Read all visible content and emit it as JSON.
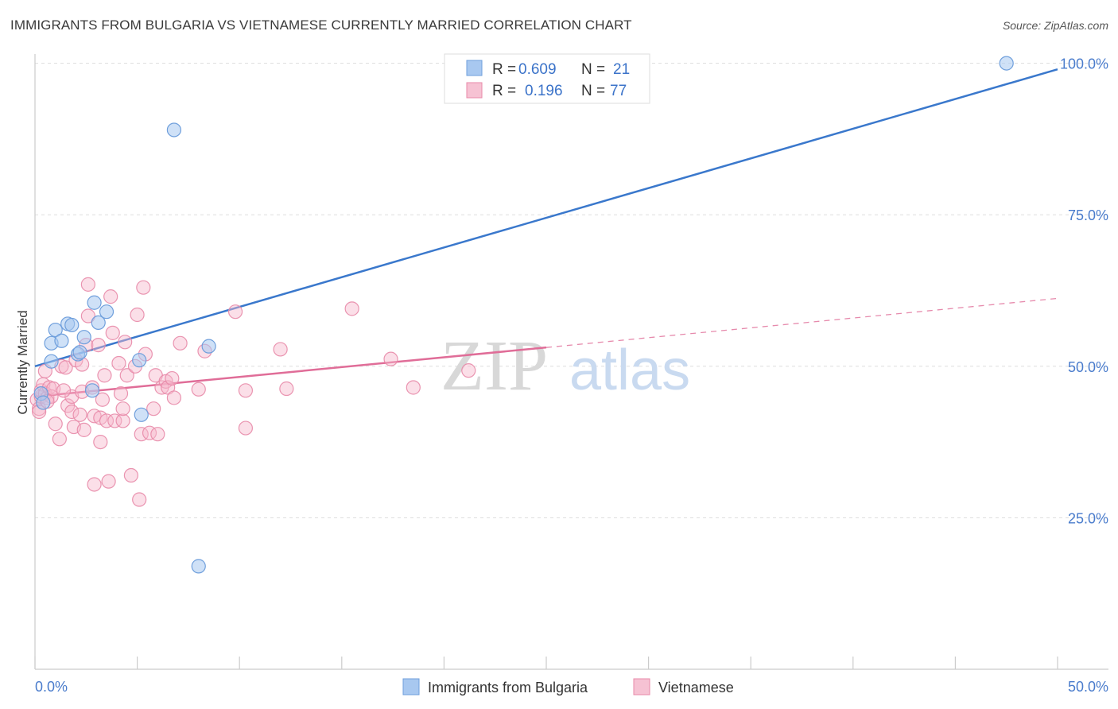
{
  "title": "IMMIGRANTS FROM BULGARIA VS VIETNAMESE CURRENTLY MARRIED CORRELATION CHART",
  "source": "Source: ZipAtlas.com",
  "watermark": {
    "zip": "ZIP",
    "atlas": "atlas"
  },
  "colors": {
    "blue_fill": "#a8c8f0",
    "blue_stroke": "#6f9fdc",
    "blue_line": "#3a78cc",
    "pink_fill": "#f6b8cc",
    "pink_stroke": "#e88aa8",
    "pink_line": "#e06d98",
    "grid": "#dddddd",
    "axis_text": "#4a7ccc"
  },
  "legend": {
    "rows": [
      {
        "r_label": "R =",
        "r_value": "0.609",
        "n_label": "N =",
        "n_value": "21"
      },
      {
        "r_label": "R =",
        "r_value": "0.196",
        "n_label": "N =",
        "n_value": "77"
      }
    ]
  },
  "bottom_legend": [
    "Immigrants from Bulgaria",
    "Vietnamese"
  ],
  "chart_data": {
    "type": "scatter",
    "title": "IMMIGRANTS FROM BULGARIA VS VIETNAMESE CURRENTLY MARRIED CORRELATION CHART",
    "xlabel": "",
    "ylabel": "Currently Married",
    "xlim": [
      0,
      50
    ],
    "ylim": [
      0,
      105
    ],
    "x_tick_labels": [
      "0.0%",
      "50.0%"
    ],
    "y_ticks": [
      25,
      50,
      75,
      100
    ],
    "y_tick_labels": [
      "25.0%",
      "50.0%",
      "75.0%",
      "100.0%"
    ],
    "series": [
      {
        "name": "Immigrants from Bulgaria",
        "R": 0.609,
        "N": 21,
        "trend": {
          "x": [
            0,
            50
          ],
          "y": [
            50.0,
            99.0
          ],
          "dashed_from": null
        },
        "points": [
          [
            0.3,
            45.5
          ],
          [
            0.4,
            44.0
          ],
          [
            0.8,
            50.8
          ],
          [
            0.8,
            53.8
          ],
          [
            1.0,
            56.0
          ],
          [
            1.3,
            54.2
          ],
          [
            1.6,
            57.0
          ],
          [
            1.8,
            56.8
          ],
          [
            2.1,
            52.0
          ],
          [
            2.2,
            52.3
          ],
          [
            2.4,
            54.8
          ],
          [
            2.8,
            46.0
          ],
          [
            2.9,
            60.5
          ],
          [
            3.1,
            57.2
          ],
          [
            3.5,
            59.0
          ],
          [
            5.1,
            51.0
          ],
          [
            5.2,
            42.0
          ],
          [
            6.8,
            89.0
          ],
          [
            8.0,
            17.0
          ],
          [
            8.5,
            53.3
          ],
          [
            47.5,
            100.0
          ]
        ]
      },
      {
        "name": "Vietnamese",
        "R": 0.196,
        "N": 77,
        "trend": {
          "x": [
            0,
            50
          ],
          "y": [
            45.0,
            61.2
          ],
          "dashed_from": 25
        },
        "points": [
          [
            0.1,
            44.5
          ],
          [
            0.2,
            43.0
          ],
          [
            0.3,
            45.0
          ],
          [
            0.3,
            46.0
          ],
          [
            0.4,
            47.0
          ],
          [
            0.5,
            49.2
          ],
          [
            0.5,
            45.5
          ],
          [
            0.6,
            44.8
          ],
          [
            0.7,
            46.5
          ],
          [
            0.8,
            45.0
          ],
          [
            0.9,
            46.3
          ],
          [
            1.0,
            40.5
          ],
          [
            1.2,
            38.0
          ],
          [
            1.3,
            50.0
          ],
          [
            1.5,
            49.8
          ],
          [
            1.6,
            43.5
          ],
          [
            1.8,
            42.5
          ],
          [
            1.8,
            45.0
          ],
          [
            1.9,
            40.0
          ],
          [
            2.0,
            51.0
          ],
          [
            2.2,
            42.0
          ],
          [
            2.3,
            50.3
          ],
          [
            2.3,
            45.8
          ],
          [
            2.4,
            39.5
          ],
          [
            2.5,
            53.5
          ],
          [
            2.6,
            58.3
          ],
          [
            2.6,
            63.5
          ],
          [
            2.8,
            46.5
          ],
          [
            2.9,
            41.8
          ],
          [
            2.9,
            30.5
          ],
          [
            3.1,
            53.5
          ],
          [
            3.2,
            41.5
          ],
          [
            3.2,
            37.5
          ],
          [
            3.3,
            44.5
          ],
          [
            3.4,
            48.5
          ],
          [
            3.5,
            41.0
          ],
          [
            3.6,
            31.0
          ],
          [
            3.7,
            61.5
          ],
          [
            3.8,
            55.5
          ],
          [
            3.9,
            41.0
          ],
          [
            4.1,
            50.5
          ],
          [
            4.2,
            45.5
          ],
          [
            4.3,
            41.0
          ],
          [
            4.3,
            43.0
          ],
          [
            4.4,
            54.0
          ],
          [
            4.5,
            48.5
          ],
          [
            4.7,
            32.0
          ],
          [
            4.9,
            50.0
          ],
          [
            5.0,
            58.5
          ],
          [
            5.1,
            28.0
          ],
          [
            5.2,
            38.8
          ],
          [
            5.3,
            63.0
          ],
          [
            5.4,
            52.0
          ],
          [
            5.6,
            39.0
          ],
          [
            5.8,
            43.0
          ],
          [
            5.9,
            48.5
          ],
          [
            6.0,
            38.8
          ],
          [
            6.2,
            46.5
          ],
          [
            6.4,
            47.5
          ],
          [
            6.5,
            46.5
          ],
          [
            6.7,
            48.0
          ],
          [
            6.8,
            44.8
          ],
          [
            8.0,
            46.2
          ],
          [
            8.3,
            52.5
          ],
          [
            9.8,
            59.0
          ],
          [
            10.3,
            46.0
          ],
          [
            10.3,
            39.8
          ],
          [
            12.0,
            52.8
          ],
          [
            12.3,
            46.3
          ],
          [
            15.5,
            59.5
          ],
          [
            17.4,
            51.2
          ],
          [
            18.5,
            46.5
          ],
          [
            21.2,
            49.3
          ],
          [
            0.2,
            42.5
          ],
          [
            0.6,
            44.2
          ],
          [
            1.4,
            46.0
          ],
          [
            7.1,
            53.8
          ]
        ]
      }
    ]
  }
}
